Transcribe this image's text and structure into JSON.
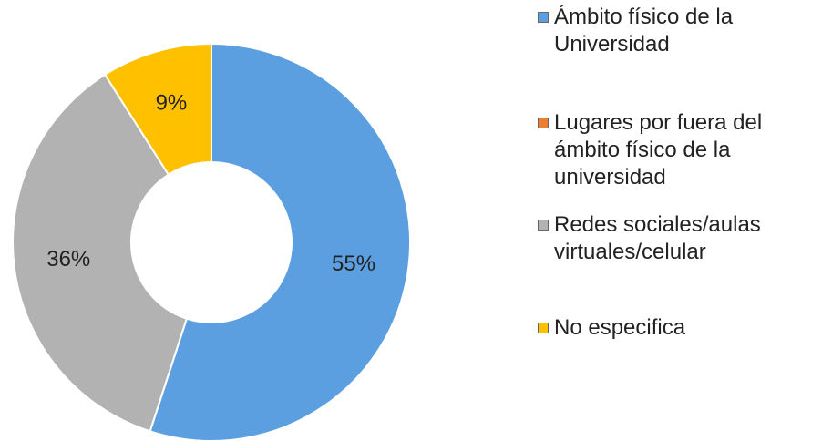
{
  "chart_data": {
    "type": "donut",
    "categories": [
      "Ámbito físico de la Universidad",
      "Lugares por fuera del ámbito físico de la universidad",
      "Redes sociales/aulas virtuales/celular",
      "No especifica"
    ],
    "values": [
      55,
      0,
      36,
      9
    ],
    "value_labels": [
      "55%",
      null,
      "36%",
      "9%"
    ],
    "colors": [
      "#5b9fe0",
      "#ed7d31",
      "#b2b2b2",
      "#ffc000"
    ],
    "legend": "right"
  }
}
